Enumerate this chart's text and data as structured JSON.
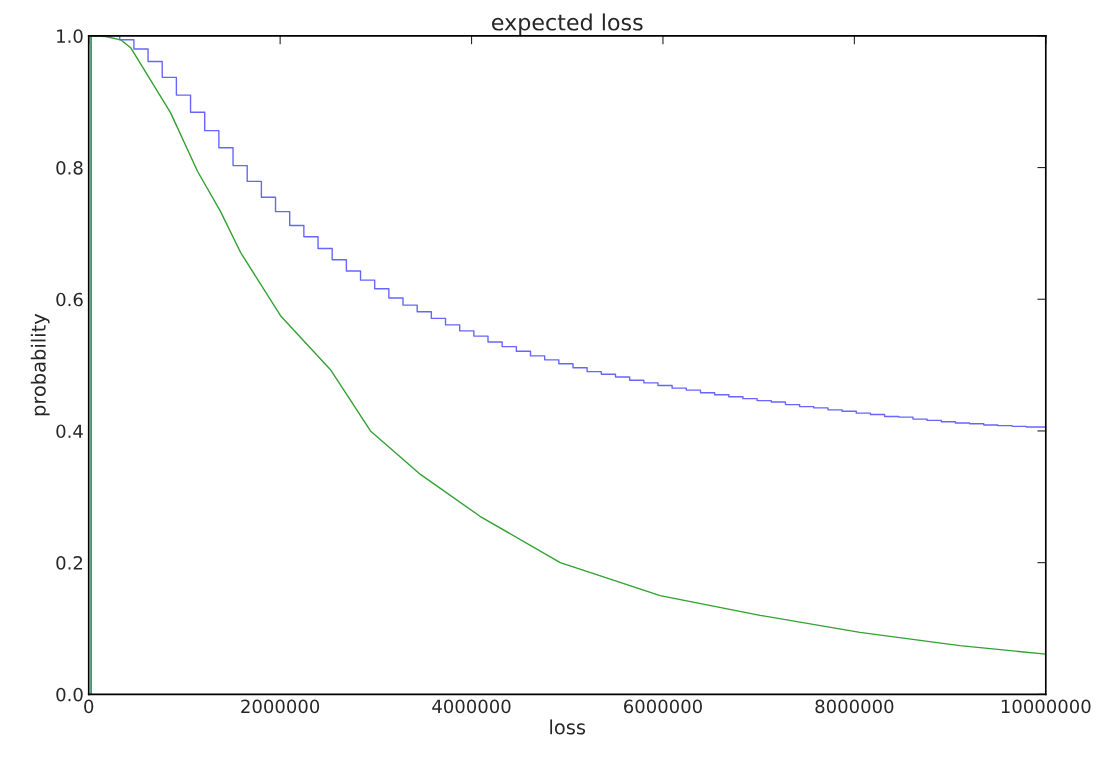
{
  "chart_data": {
    "type": "step",
    "title": "expected loss",
    "xlabel": "loss",
    "ylabel": "probability",
    "xlim": [
      0,
      10000000
    ],
    "ylim": [
      0,
      1
    ],
    "xticks": [
      0,
      2000000,
      4000000,
      6000000,
      8000000,
      10000000
    ],
    "yticks": [
      {
        "value": 0,
        "label": "0.0"
      },
      0.2,
      0.4,
      0.6,
      0.8,
      {
        "value": 1,
        "label": "1.0"
      }
    ],
    "grid": false,
    "legend": false,
    "series": [
      {
        "color": "#6666ff",
        "x": [
          25000,
          25000,
          324000,
          472000,
          620000,
          768000,
          916000,
          1064000,
          1212000,
          1360000,
          1508000,
          1656000,
          1804000,
          1952000,
          2100000,
          2248000,
          2396000,
          2544000,
          2692000,
          2840000,
          2988000,
          3136000,
          3284000,
          3432000,
          3580000,
          3728000,
          3876000,
          4024000,
          4172000,
          4320000,
          4468000,
          4616000,
          4764000,
          4912000,
          5060000,
          5208000,
          5356000,
          5504000,
          5652000,
          5800000,
          5948000,
          6096000,
          6244000,
          6392000,
          6540000,
          6688000,
          6836000,
          6984000,
          7132000,
          7280000,
          7428000,
          7576000,
          7724000,
          7872000,
          8020000,
          8168000,
          8316000,
          8464000,
          8612000,
          8760000,
          8908000,
          9056000,
          9204000,
          9352000,
          9500000,
          9648000,
          9796000,
          10000000
        ],
        "values": [
          0,
          1.0,
          0.994,
          0.98,
          0.961,
          0.937,
          0.91,
          0.884,
          0.856,
          0.83,
          0.803,
          0.779,
          0.755,
          0.733,
          0.712,
          0.695,
          0.677,
          0.66,
          0.643,
          0.629,
          0.616,
          0.602,
          0.591,
          0.581,
          0.571,
          0.561,
          0.552,
          0.544,
          0.535,
          0.528,
          0.521,
          0.514,
          0.508,
          0.502,
          0.496,
          0.49,
          0.486,
          0.482,
          0.477,
          0.473,
          0.469,
          0.465,
          0.462,
          0.458,
          0.455,
          0.452,
          0.449,
          0.446,
          0.444,
          0.44,
          0.437,
          0.435,
          0.432,
          0.43,
          0.427,
          0.425,
          0.422,
          0.421,
          0.418,
          0.416,
          0.414,
          0.412,
          0.411,
          0.409,
          0.408,
          0.407,
          0.406,
          0.406
        ]
      },
      {
        "type": "line",
        "color": "#33a033",
        "x": [
          25000,
          25000,
          177000,
          334000,
          438000,
          616000,
          856000,
          1138000,
          1378000,
          1587000,
          2004000,
          2526000,
          2944000,
          3466000,
          4092000,
          4927000,
          5971000,
          7015000,
          8058000,
          9102000,
          10000000
        ],
        "values": [
          0,
          1.0,
          0.999,
          0.994,
          0.982,
          0.94,
          0.883,
          0.794,
          0.733,
          0.671,
          0.575,
          0.493,
          0.4,
          0.334,
          0.27,
          0.2,
          0.15,
          0.12,
          0.094,
          0.074,
          0.061
        ]
      }
    ]
  }
}
